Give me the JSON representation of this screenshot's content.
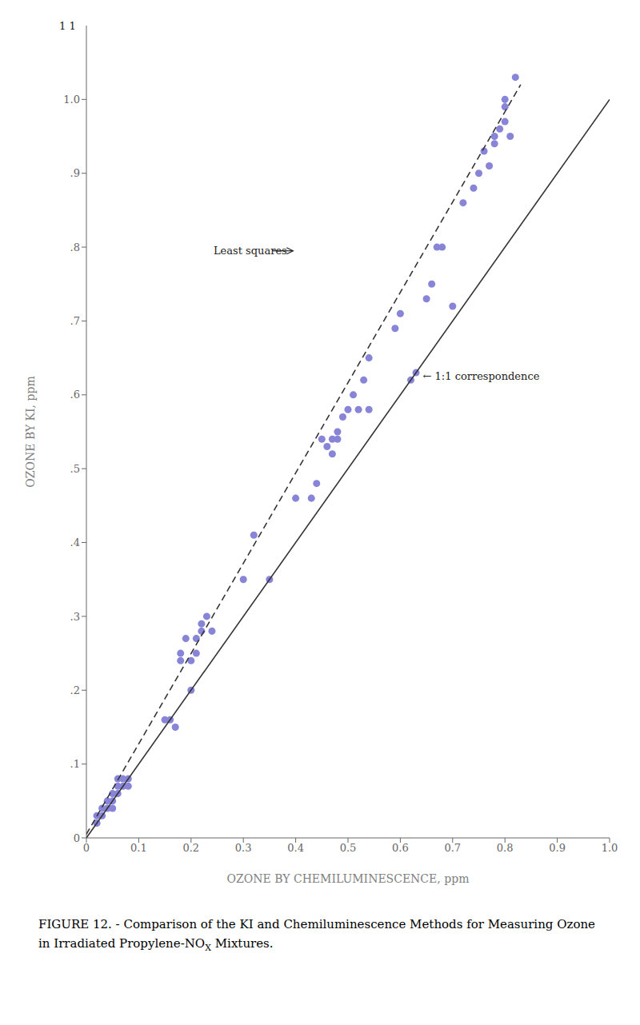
{
  "chart_data": {
    "type": "scatter",
    "title": "FIGURE 12. - Comparison of the KI and Chemiluminescence Methods for Measuring Ozone",
    "subtitle": [
      "in Irradiated Propylene-NO",
      "X",
      " Mixtures."
    ],
    "xlabel": "OZONE BY CHEMILUMINESCENCE, ppm",
    "ylabel": "OZONE BY KI, ppm",
    "xlim": [
      0.0,
      1.0
    ],
    "ylim": [
      0.0,
      1.1
    ],
    "xticks": [
      0,
      0.1,
      0.2,
      0.3,
      0.4,
      0.5,
      0.6,
      0.7,
      0.8,
      0.9,
      {
        "value": 1.0,
        "label": "1.0"
      }
    ],
    "yticks": [
      0,
      {
        "value": 0.1,
        "label": ".1"
      },
      {
        "value": 0.2,
        "label": ".2"
      },
      {
        "value": 0.3,
        "label": ".3"
      },
      {
        "value": 0.4,
        "label": ".4"
      },
      {
        "value": 0.5,
        "label": ".5"
      },
      {
        "value": 0.6,
        "label": ".6"
      },
      {
        "value": 0.7,
        "label": ".7"
      },
      {
        "value": 0.8,
        "label": ".8"
      },
      {
        "value": 0.9,
        "label": ".9"
      },
      {
        "value": 1.0,
        "label": "1.0"
      }
    ],
    "grid": false,
    "series": [
      {
        "type": "scatter",
        "marker": "circle",
        "color": "#8884d8",
        "x": [
          0.02,
          0.02,
          0.03,
          0.03,
          0.04,
          0.04,
          0.05,
          0.05,
          0.05,
          0.06,
          0.06,
          0.06,
          0.07,
          0.07,
          0.08,
          0.08,
          0.15,
          0.16,
          0.17,
          0.18,
          0.18,
          0.19,
          0.2,
          0.2,
          0.21,
          0.21,
          0.22,
          0.22,
          0.23,
          0.24,
          0.3,
          0.32,
          0.35,
          0.4,
          0.43,
          0.44,
          0.45,
          0.46,
          0.47,
          0.47,
          0.48,
          0.48,
          0.49,
          0.5,
          0.51,
          0.52,
          0.53,
          0.54,
          0.54,
          0.59,
          0.6,
          0.62,
          0.63,
          0.65,
          0.66,
          0.67,
          0.68,
          0.7,
          0.72,
          0.74,
          0.75,
          0.76,
          0.77,
          0.78,
          0.78,
          0.79,
          0.8,
          0.8,
          0.8,
          0.81,
          0.82
        ],
        "y": [
          0.02,
          0.03,
          0.03,
          0.04,
          0.04,
          0.05,
          0.04,
          0.05,
          0.06,
          0.06,
          0.07,
          0.08,
          0.07,
          0.08,
          0.07,
          0.08,
          0.16,
          0.16,
          0.15,
          0.24,
          0.25,
          0.27,
          0.2,
          0.24,
          0.25,
          0.27,
          0.28,
          0.29,
          0.3,
          0.28,
          0.35,
          0.41,
          0.35,
          0.46,
          0.46,
          0.48,
          0.54,
          0.53,
          0.52,
          0.54,
          0.54,
          0.55,
          0.57,
          0.58,
          0.6,
          0.58,
          0.62,
          0.65,
          0.58,
          0.69,
          0.71,
          0.62,
          0.63,
          0.73,
          0.75,
          0.8,
          0.8,
          0.72,
          0.86,
          0.88,
          0.9,
          0.93,
          0.91,
          0.94,
          0.95,
          0.96,
          0.97,
          0.99,
          1.0,
          0.95,
          1.03
        ]
      },
      {
        "type": "line",
        "line_style": "dashed",
        "color": "#333333",
        "x": [
          0.0,
          0.83
        ],
        "y": [
          0.005,
          1.02
        ]
      },
      {
        "type": "line",
        "line_style": "solid",
        "color": "#333333",
        "x": [
          0.0,
          1.0
        ],
        "y": [
          0.0,
          1.0
        ]
      }
    ],
    "annotations": [
      {
        "text": "1 1",
        "x": -0.055,
        "y": 1.1
      },
      {
        "text": "Least squares",
        "x": 0.24,
        "y": 0.795,
        "arrow_to": [
          0.395,
          0.795
        ]
      },
      {
        "text": "← 1:1 correspondence",
        "x": 0.64,
        "y": 0.625
      }
    ]
  }
}
